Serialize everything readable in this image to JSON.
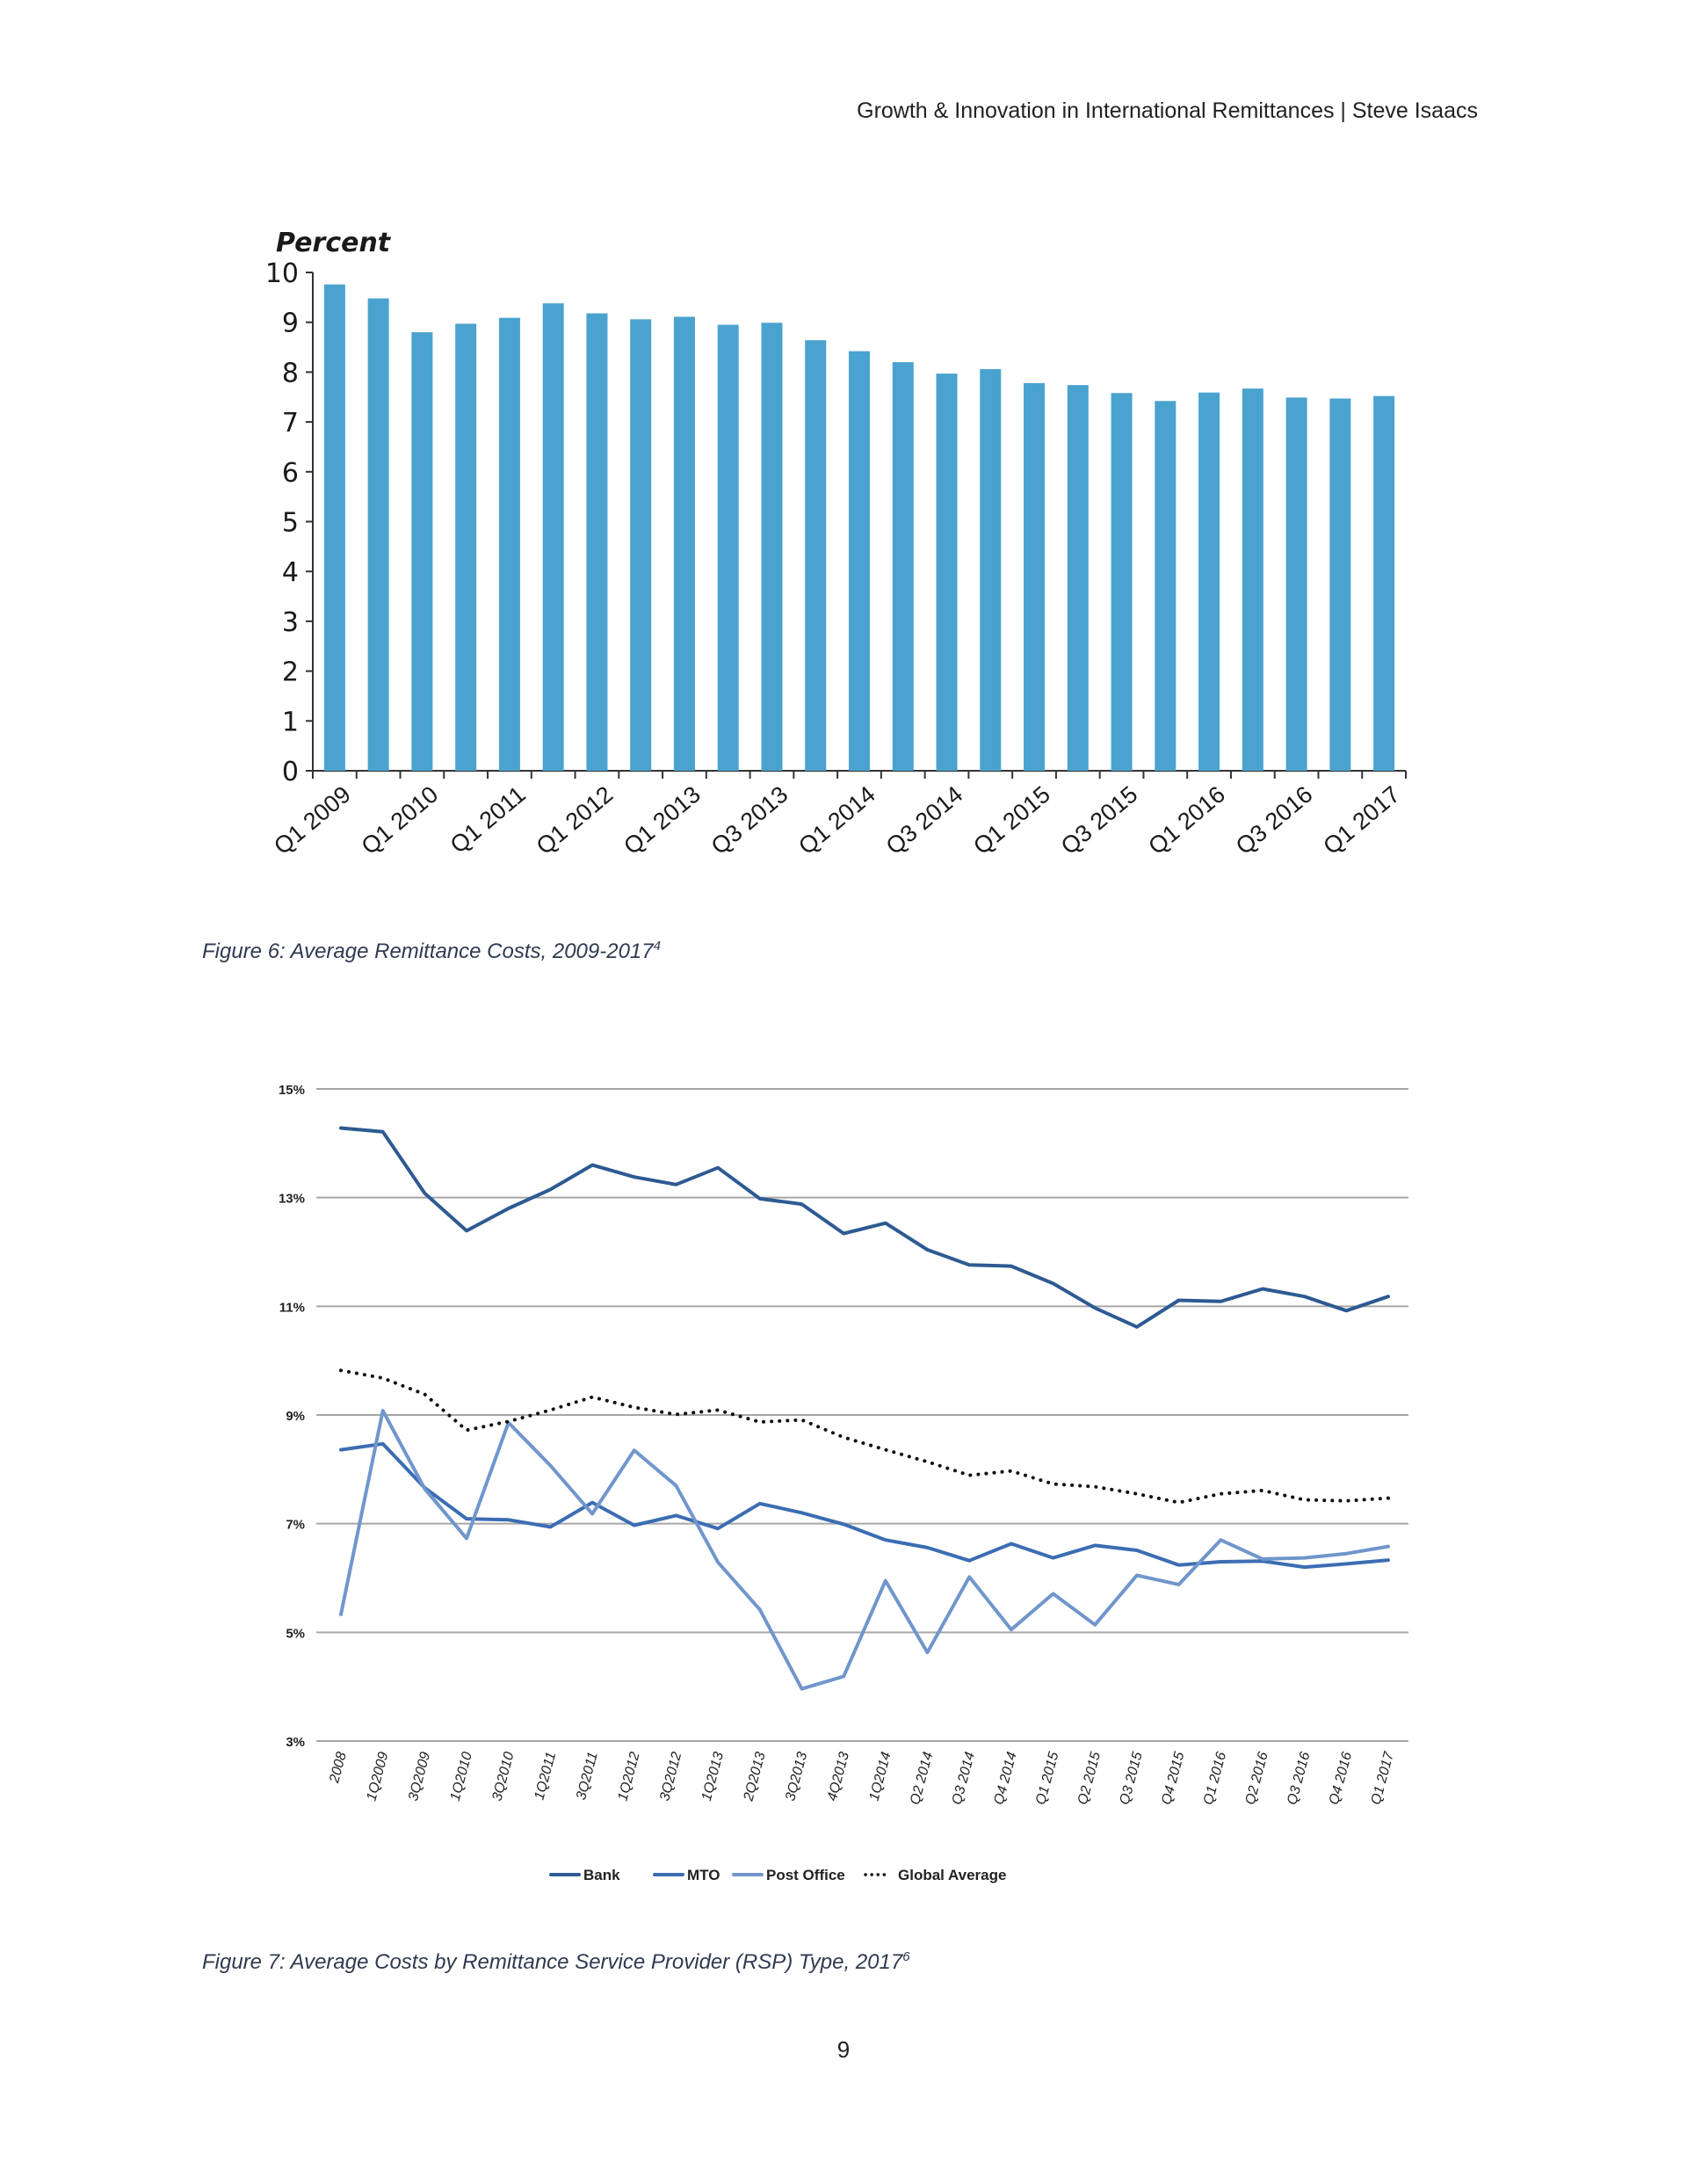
{
  "header": {
    "text": "Growth & Innovation in International Remittances | Steve Isaacs"
  },
  "page_number": "9",
  "figure6": {
    "caption": "Figure 6: Average Remittance Costs, 2009-2017",
    "caption_sup": "4"
  },
  "figure7": {
    "caption": "Figure 7: Average Costs by Remittance Service Provider (RSP) Type, 2017",
    "caption_sup": "6"
  },
  "colors": {
    "bar": "#4aa3cf",
    "bank": "#2d5a92",
    "mto": "#3b6db3",
    "post_office": "#7096cc",
    "global_average": "#111111",
    "grid": "#a6a6a6"
  },
  "chart_data": [
    {
      "type": "bar",
      "title": "",
      "ylabel": "Percent",
      "xlabel": "",
      "ylim": [
        0,
        10
      ],
      "yticks": [
        "0",
        "1",
        "2",
        "3",
        "4",
        "5",
        "6",
        "7",
        "8",
        "9",
        "10"
      ],
      "xtick_labels": [
        "Q1 2009",
        "Q1 2010",
        "Q1 2011",
        "Q1 2012",
        "Q1 2013",
        "Q3 2013",
        "Q1 2014",
        "Q3 2014",
        "Q1 2015",
        "Q3 2015",
        "Q1 2016",
        "Q3 2016",
        "Q1 2017"
      ],
      "xtick_positions": [
        0,
        2,
        4,
        6,
        8,
        10,
        12,
        14,
        16,
        18,
        20,
        22,
        24
      ],
      "values": [
        9.76,
        9.48,
        8.8,
        8.97,
        9.09,
        9.38,
        9.18,
        9.06,
        9.11,
        8.95,
        8.99,
        8.64,
        8.42,
        8.2,
        7.97,
        8.06,
        7.78,
        7.74,
        7.58,
        7.42,
        7.59,
        7.67,
        7.49,
        7.47,
        7.52
      ],
      "grid": false
    },
    {
      "type": "line",
      "title": "",
      "xlabel": "",
      "ylabel": "",
      "ylim": [
        3,
        15
      ],
      "yticks": [
        "3%",
        "5%",
        "7%",
        "9%",
        "11%",
        "13%",
        "15%"
      ],
      "x": [
        "2008",
        "1Q2009",
        "3Q2009",
        "1Q2010",
        "3Q2010",
        "1Q2011",
        "3Q2011",
        "1Q2012",
        "3Q2012",
        "1Q2013",
        "2Q2013",
        "3Q2013",
        "4Q2013",
        "1Q2014",
        "Q2 2014",
        "Q3 2014",
        "Q4 2014",
        "Q1 2015",
        "Q2 2015",
        "Q3 2015",
        "Q4 2015",
        "Q1 2016",
        "Q2 2016",
        "Q3 2016",
        "Q4 2016",
        "Q1 2017"
      ],
      "grid": true,
      "legend_position": "bottom",
      "series": [
        {
          "name": "Bank",
          "style": "solid",
          "values": [
            14.28,
            14.21,
            13.08,
            12.39,
            12.8,
            13.15,
            13.6,
            13.38,
            13.24,
            13.55,
            12.98,
            12.88,
            12.34,
            12.53,
            12.04,
            11.76,
            11.74,
            11.42,
            10.97,
            10.62,
            11.11,
            11.09,
            11.32,
            11.18,
            10.92,
            11.18
          ]
        },
        {
          "name": "MTO",
          "style": "solid",
          "values": [
            8.36,
            8.47,
            7.66,
            7.09,
            7.07,
            6.94,
            7.39,
            6.97,
            7.15,
            6.91,
            7.37,
            7.2,
            6.99,
            6.7,
            6.56,
            6.32,
            6.63,
            6.37,
            6.6,
            6.51,
            6.24,
            6.3,
            6.31,
            6.2,
            6.26,
            6.33
          ]
        },
        {
          "name": "Post Office",
          "style": "solid",
          "values": [
            5.33,
            9.08,
            7.64,
            6.73,
            8.86,
            8.07,
            7.18,
            8.35,
            7.7,
            6.29,
            5.42,
            3.96,
            4.19,
            5.95,
            4.63,
            6.02,
            5.05,
            5.71,
            5.14,
            6.05,
            5.88,
            6.7,
            6.35,
            6.37,
            6.45,
            6.58
          ]
        },
        {
          "name": "Global Average",
          "style": "dotted",
          "values": [
            9.82,
            9.68,
            9.38,
            8.72,
            8.88,
            9.09,
            9.33,
            9.14,
            9.01,
            9.09,
            8.87,
            8.91,
            8.59,
            8.36,
            8.14,
            7.89,
            7.97,
            7.73,
            7.68,
            7.55,
            7.39,
            7.55,
            7.61,
            7.44,
            7.42,
            7.47
          ]
        }
      ]
    }
  ]
}
